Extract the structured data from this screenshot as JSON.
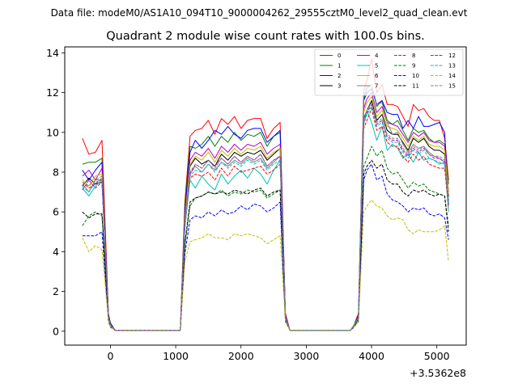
{
  "header": "Data file: modeM0/AS1A10_094T10_9000004262_29555cztM0_level2_quad_clean.evt",
  "chart_data": {
    "type": "line",
    "title": "Quadrant 2 module wise count rates with 100.0s bins.",
    "xlabel": "",
    "ylabel": "",
    "x_offset_label": "+3.5362e8",
    "xlim": [
      -700,
      5450
    ],
    "ylim": [
      -0.7,
      14.3
    ],
    "xticks": [
      0,
      1000,
      2000,
      3000,
      4000,
      5000
    ],
    "yticks": [
      0,
      2,
      4,
      6,
      8,
      10,
      12,
      14
    ],
    "grid": false,
    "legend_position": "top-right",
    "x": [
      -430,
      -330,
      -230,
      -130,
      -30,
      0,
      70,
      170,
      270,
      370,
      470,
      570,
      670,
      770,
      870,
      970,
      1070,
      1140,
      1220,
      1300,
      1400,
      1500,
      1600,
      1700,
      1800,
      1900,
      2000,
      2100,
      2200,
      2300,
      2400,
      2500,
      2600,
      2680,
      2750,
      2800,
      2880,
      2980,
      3080,
      3180,
      3280,
      3380,
      3480,
      3580,
      3680,
      3730,
      3800,
      3880,
      3930,
      4000,
      4080,
      4160,
      4240,
      4320,
      4400,
      4480,
      4560,
      4640,
      4720,
      4800,
      4880,
      4960,
      5040,
      5120,
      5180
    ],
    "series": [
      {
        "name": "0",
        "color": "#ff0000",
        "dash": false,
        "values": [
          9.7,
          8.9,
          9.0,
          9.6,
          0.9,
          0.4,
          0.05,
          0.05,
          0.05,
          0.05,
          0.05,
          0.05,
          0.05,
          0.05,
          0.05,
          0.05,
          0.05,
          6.5,
          9.8,
          10.1,
          10.2,
          10.6,
          9.9,
          10.7,
          10.4,
          10.8,
          10.2,
          10.6,
          10.7,
          10.7,
          9.7,
          10.2,
          10.5,
          0.9,
          0.05,
          0.05,
          0.05,
          0.05,
          0.05,
          0.05,
          0.05,
          0.05,
          0.05,
          0.05,
          0.05,
          0.3,
          0.9,
          12.1,
          12.6,
          13.7,
          12.0,
          12.4,
          11.4,
          11.4,
          11.3,
          10.8,
          10.3,
          11.4,
          11.1,
          11.2,
          10.8,
          10.6,
          10.6,
          9.7,
          7.6
        ]
      },
      {
        "name": "1",
        "color": "#008000",
        "dash": false,
        "values": [
          8.4,
          8.5,
          8.5,
          8.7,
          0.8,
          0.4,
          0.05,
          0.05,
          0.05,
          0.05,
          0.05,
          0.05,
          0.05,
          0.05,
          0.05,
          0.05,
          0.05,
          6.3,
          9.3,
          9.2,
          9.4,
          9.8,
          9.3,
          9.8,
          9.5,
          10.0,
          9.6,
          9.9,
          9.8,
          10.0,
          9.3,
          9.8,
          10.0,
          0.8,
          0.05,
          0.05,
          0.05,
          0.05,
          0.05,
          0.05,
          0.05,
          0.05,
          0.05,
          0.05,
          0.05,
          0.3,
          0.8,
          11.7,
          12.2,
          12.4,
          11.3,
          11.6,
          10.6,
          10.4,
          10.6,
          10.1,
          9.6,
          10.2,
          10.0,
          10.1,
          9.7,
          9.5,
          9.6,
          9.4,
          7.4
        ]
      },
      {
        "name": "2",
        "color": "#0000ff",
        "dash": false,
        "values": [
          8.1,
          7.6,
          8.1,
          8.5,
          0.8,
          0.4,
          0.05,
          0.05,
          0.05,
          0.05,
          0.05,
          0.05,
          0.05,
          0.05,
          0.05,
          0.05,
          0.05,
          6.0,
          9.0,
          9.6,
          9.2,
          9.6,
          10.1,
          9.9,
          10.3,
          9.9,
          9.7,
          10.1,
          10.2,
          10.2,
          9.5,
          9.8,
          10.1,
          0.8,
          0.05,
          0.05,
          0.05,
          0.05,
          0.05,
          0.05,
          0.05,
          0.05,
          0.05,
          0.05,
          0.05,
          0.3,
          0.8,
          11.6,
          12.0,
          12.2,
          11.4,
          11.6,
          11.0,
          10.9,
          10.9,
          10.2,
          10.6,
          10.2,
          10.8,
          10.3,
          10.3,
          10.4,
          10.5,
          10.0,
          6.4
        ]
      },
      {
        "name": "3",
        "color": "#000000",
        "dash": false,
        "values": [
          7.3,
          7.7,
          7.4,
          7.5,
          0.7,
          0.3,
          0.05,
          0.05,
          0.05,
          0.05,
          0.05,
          0.05,
          0.05,
          0.05,
          0.05,
          0.05,
          0.05,
          5.5,
          8.3,
          8.7,
          8.4,
          8.6,
          8.3,
          8.9,
          8.6,
          9.0,
          8.8,
          9.0,
          8.9,
          9.1,
          8.6,
          8.9,
          9.2,
          0.7,
          0.05,
          0.05,
          0.05,
          0.05,
          0.05,
          0.05,
          0.05,
          0.05,
          0.05,
          0.05,
          0.05,
          0.3,
          0.7,
          10.7,
          11.1,
          11.6,
          10.6,
          10.9,
          10.1,
          9.9,
          9.9,
          9.5,
          9.1,
          9.7,
          9.5,
          9.7,
          9.3,
          9.1,
          9.1,
          8.9,
          6.8
        ]
      },
      {
        "name": "4",
        "color": "#bf00bf",
        "dash": false,
        "values": [
          7.8,
          8.1,
          7.6,
          8.2,
          0.7,
          0.3,
          0.05,
          0.05,
          0.05,
          0.05,
          0.05,
          0.05,
          0.05,
          0.05,
          0.05,
          0.05,
          0.05,
          5.8,
          8.6,
          9.0,
          8.8,
          9.2,
          8.7,
          9.3,
          9.0,
          9.4,
          9.1,
          9.4,
          9.3,
          9.5,
          8.9,
          9.2,
          9.4,
          0.7,
          0.05,
          0.05,
          0.05,
          0.05,
          0.05,
          0.05,
          0.05,
          0.05,
          0.05,
          0.05,
          0.05,
          0.3,
          0.7,
          11.2,
          11.7,
          12.0,
          11.0,
          11.3,
          10.5,
          10.4,
          10.3,
          9.9,
          9.5,
          10.0,
          9.8,
          10.0,
          9.6,
          9.5,
          9.5,
          9.3,
          7.0
        ]
      },
      {
        "name": "5",
        "color": "#00bfbf",
        "dash": false,
        "values": [
          7.2,
          6.8,
          7.3,
          7.6,
          0.7,
          0.3,
          0.05,
          0.05,
          0.05,
          0.05,
          0.05,
          0.05,
          0.05,
          0.05,
          0.05,
          0.05,
          0.05,
          5.3,
          7.6,
          7.2,
          7.8,
          7.4,
          7.1,
          7.9,
          7.4,
          7.8,
          8.1,
          7.7,
          8.2,
          7.9,
          7.4,
          8.1,
          8.6,
          0.7,
          0.05,
          0.05,
          0.05,
          0.05,
          0.05,
          0.05,
          0.05,
          0.05,
          0.05,
          0.05,
          0.05,
          0.3,
          0.7,
          10.6,
          11.1,
          10.5,
          9.6,
          10.3,
          9.1,
          9.4,
          9.2,
          8.7,
          8.9,
          8.5,
          9.0,
          8.6,
          8.7,
          8.6,
          8.4,
          8.5,
          6.0
        ]
      },
      {
        "name": "6",
        "color": "#bfbf00",
        "dash": false,
        "values": [
          7.6,
          7.3,
          7.8,
          7.9,
          0.7,
          0.3,
          0.05,
          0.05,
          0.05,
          0.05,
          0.05,
          0.05,
          0.05,
          0.05,
          0.05,
          0.05,
          0.05,
          5.6,
          8.4,
          8.8,
          8.6,
          9.0,
          8.5,
          9.1,
          8.8,
          9.2,
          8.9,
          9.2,
          9.1,
          9.3,
          8.7,
          9.0,
          9.2,
          0.7,
          0.05,
          0.05,
          0.05,
          0.05,
          0.05,
          0.05,
          0.05,
          0.05,
          0.05,
          0.05,
          0.05,
          0.3,
          0.7,
          11.0,
          11.5,
          11.8,
          10.8,
          11.1,
          10.3,
          10.2,
          10.1,
          9.7,
          9.3,
          9.8,
          9.6,
          9.8,
          9.4,
          9.3,
          9.3,
          9.1,
          6.9
        ]
      },
      {
        "name": "7",
        "color": "#808080",
        "dash": false,
        "values": [
          7.4,
          7.0,
          7.6,
          7.6,
          0.7,
          0.3,
          0.05,
          0.05,
          0.05,
          0.05,
          0.05,
          0.05,
          0.05,
          0.05,
          0.05,
          0.05,
          0.05,
          5.4,
          7.9,
          8.3,
          8.0,
          8.4,
          8.1,
          8.5,
          8.3,
          8.6,
          8.4,
          8.7,
          8.5,
          8.7,
          8.2,
          8.5,
          8.8,
          0.7,
          0.05,
          0.05,
          0.05,
          0.05,
          0.05,
          0.05,
          0.05,
          0.05,
          0.05,
          0.05,
          0.05,
          0.3,
          0.7,
          11.8,
          12.3,
          12.4,
          11.4,
          11.5,
          10.5,
          9.9,
          10.0,
          9.4,
          9.0,
          9.4,
          9.2,
          9.3,
          9.0,
          8.8,
          8.7,
          8.5,
          6.6
        ]
      },
      {
        "name": "8",
        "color": "#ff0000",
        "dash": true,
        "values": [
          7.5,
          7.2,
          7.4,
          7.7,
          0.7,
          0.3,
          0.05,
          0.05,
          0.05,
          0.05,
          0.05,
          0.05,
          0.05,
          0.05,
          0.05,
          0.05,
          0.05,
          5.2,
          7.7,
          7.9,
          7.8,
          8.0,
          7.6,
          8.2,
          7.8,
          8.3,
          8.0,
          8.1,
          8.2,
          8.3,
          7.9,
          8.1,
          8.4,
          0.7,
          0.05,
          0.05,
          0.05,
          0.05,
          0.05,
          0.05,
          0.05,
          0.05,
          0.05,
          0.05,
          0.05,
          0.3,
          0.7,
          10.2,
          10.6,
          11.2,
          10.1,
          10.3,
          9.5,
          9.3,
          9.3,
          8.8,
          8.5,
          8.9,
          8.6,
          8.8,
          8.4,
          8.3,
          8.2,
          8.2,
          6.2
        ]
      },
      {
        "name": "9",
        "color": "#008000",
        "dash": true,
        "values": [
          5.3,
          5.8,
          6.0,
          5.8,
          0.6,
          0.3,
          0.05,
          0.05,
          0.05,
          0.05,
          0.05,
          0.05,
          0.05,
          0.05,
          0.05,
          0.05,
          0.05,
          4.3,
          6.3,
          6.7,
          6.8,
          7.0,
          6.9,
          7.1,
          6.8,
          7.0,
          6.9,
          7.1,
          7.0,
          7.1,
          6.7,
          6.9,
          7.1,
          0.6,
          0.05,
          0.05,
          0.05,
          0.05,
          0.05,
          0.05,
          0.05,
          0.05,
          0.05,
          0.05,
          0.05,
          0.2,
          0.6,
          8.3,
          8.7,
          9.3,
          8.8,
          9.1,
          8.2,
          7.9,
          8.0,
          7.6,
          7.2,
          7.5,
          7.3,
          7.4,
          7.1,
          7.0,
          6.9,
          6.8,
          5.3
        ]
      },
      {
        "name": "10",
        "color": "#0000ff",
        "dash": true,
        "values": [
          4.8,
          4.8,
          4.8,
          5.0,
          0.5,
          0.2,
          0.05,
          0.05,
          0.05,
          0.05,
          0.05,
          0.05,
          0.05,
          0.05,
          0.05,
          0.05,
          0.05,
          3.9,
          5.6,
          5.8,
          5.7,
          6.0,
          5.8,
          6.1,
          5.9,
          6.0,
          6.3,
          6.1,
          6.4,
          6.3,
          6.0,
          6.2,
          6.5,
          0.5,
          0.05,
          0.05,
          0.05,
          0.05,
          0.05,
          0.05,
          0.05,
          0.05,
          0.05,
          0.05,
          0.05,
          0.2,
          0.5,
          7.6,
          8.1,
          8.4,
          7.6,
          7.8,
          6.9,
          6.6,
          6.5,
          6.3,
          6.0,
          6.2,
          6.1,
          6.2,
          5.9,
          5.8,
          5.9,
          5.7,
          4.6
        ]
      },
      {
        "name": "11",
        "color": "#000000",
        "dash": true,
        "values": [
          6.0,
          5.7,
          5.9,
          5.9,
          0.6,
          0.3,
          0.05,
          0.05,
          0.05,
          0.05,
          0.05,
          0.05,
          0.05,
          0.05,
          0.05,
          0.05,
          0.05,
          4.4,
          6.5,
          6.7,
          6.8,
          7.0,
          6.9,
          7.0,
          6.9,
          7.1,
          7.0,
          6.9,
          7.1,
          7.2,
          6.8,
          7.0,
          7.1,
          0.6,
          0.05,
          0.05,
          0.05,
          0.05,
          0.05,
          0.05,
          0.05,
          0.05,
          0.05,
          0.05,
          0.05,
          0.3,
          0.6,
          7.9,
          8.3,
          8.6,
          8.2,
          8.4,
          7.6,
          7.4,
          7.4,
          7.0,
          6.8,
          7.1,
          7.0,
          7.1,
          6.9,
          6.8,
          6.9,
          6.8,
          5.0
        ]
      },
      {
        "name": "12",
        "color": "#bf00bf",
        "dash": true,
        "values": [
          7.1,
          7.6,
          7.2,
          7.5,
          0.7,
          0.3,
          0.05,
          0.05,
          0.05,
          0.05,
          0.05,
          0.05,
          0.05,
          0.05,
          0.05,
          0.05,
          0.05,
          5.3,
          7.9,
          8.4,
          8.2,
          8.6,
          8.3,
          8.7,
          8.4,
          8.8,
          8.5,
          8.8,
          8.6,
          8.9,
          8.3,
          8.6,
          8.8,
          0.7,
          0.05,
          0.05,
          0.05,
          0.05,
          0.05,
          0.05,
          0.05,
          0.05,
          0.05,
          0.05,
          0.05,
          0.3,
          0.7,
          10.5,
          11.0,
          11.4,
          10.4,
          10.6,
          9.8,
          9.6,
          9.6,
          9.1,
          8.8,
          9.2,
          9.0,
          9.2,
          8.9,
          8.7,
          8.7,
          8.5,
          6.6
        ]
      },
      {
        "name": "13",
        "color": "#00bfbf",
        "dash": true,
        "values": [
          7.3,
          7.0,
          7.5,
          7.6,
          0.7,
          0.3,
          0.05,
          0.05,
          0.05,
          0.05,
          0.05,
          0.05,
          0.05,
          0.05,
          0.05,
          0.05,
          0.05,
          5.2,
          7.8,
          8.1,
          8.0,
          8.4,
          8.0,
          8.5,
          8.2,
          8.5,
          8.3,
          8.6,
          8.4,
          8.6,
          8.1,
          8.4,
          8.6,
          0.7,
          0.05,
          0.05,
          0.05,
          0.05,
          0.05,
          0.05,
          0.05,
          0.05,
          0.05,
          0.05,
          0.05,
          0.3,
          0.7,
          10.4,
          10.9,
          11.3,
          10.3,
          10.5,
          9.7,
          9.5,
          9.5,
          9.0,
          8.7,
          9.1,
          8.9,
          9.1,
          8.7,
          8.6,
          8.5,
          8.4,
          6.4
        ]
      },
      {
        "name": "14",
        "color": "#bfbf00",
        "dash": true,
        "values": [
          4.7,
          4.0,
          4.3,
          4.1,
          0.5,
          0.2,
          0.05,
          0.05,
          0.05,
          0.05,
          0.05,
          0.05,
          0.05,
          0.05,
          0.05,
          0.05,
          0.05,
          3.5,
          4.5,
          4.6,
          4.7,
          4.9,
          4.7,
          4.7,
          4.6,
          4.9,
          4.8,
          4.9,
          4.8,
          4.7,
          4.4,
          4.6,
          4.8,
          0.5,
          0.05,
          0.05,
          0.05,
          0.05,
          0.05,
          0.05,
          0.05,
          0.05,
          0.05,
          0.05,
          0.05,
          0.2,
          0.5,
          6.0,
          6.3,
          6.6,
          6.3,
          6.2,
          5.8,
          5.6,
          5.7,
          5.6,
          5.1,
          4.9,
          5.1,
          5.0,
          5.0,
          5.0,
          5.1,
          5.3,
          3.5
        ]
      },
      {
        "name": "15",
        "color": "#808080",
        "dash": true,
        "values": [
          7.5,
          7.3,
          7.6,
          7.8,
          0.7,
          0.3,
          0.05,
          0.05,
          0.05,
          0.05,
          0.05,
          0.05,
          0.05,
          0.05,
          0.05,
          0.05,
          0.05,
          5.4,
          8.0,
          8.4,
          8.2,
          8.6,
          8.2,
          8.7,
          8.4,
          8.8,
          8.5,
          8.8,
          8.6,
          8.9,
          8.3,
          8.6,
          8.8,
          0.7,
          0.05,
          0.05,
          0.05,
          0.05,
          0.05,
          0.05,
          0.05,
          0.05,
          0.05,
          0.05,
          0.05,
          0.3,
          0.7,
          10.6,
          11.1,
          11.5,
          10.5,
          10.7,
          9.9,
          9.7,
          9.7,
          9.2,
          8.9,
          9.3,
          9.1,
          9.3,
          8.9,
          8.8,
          8.8,
          8.6,
          6.6
        ]
      }
    ]
  }
}
